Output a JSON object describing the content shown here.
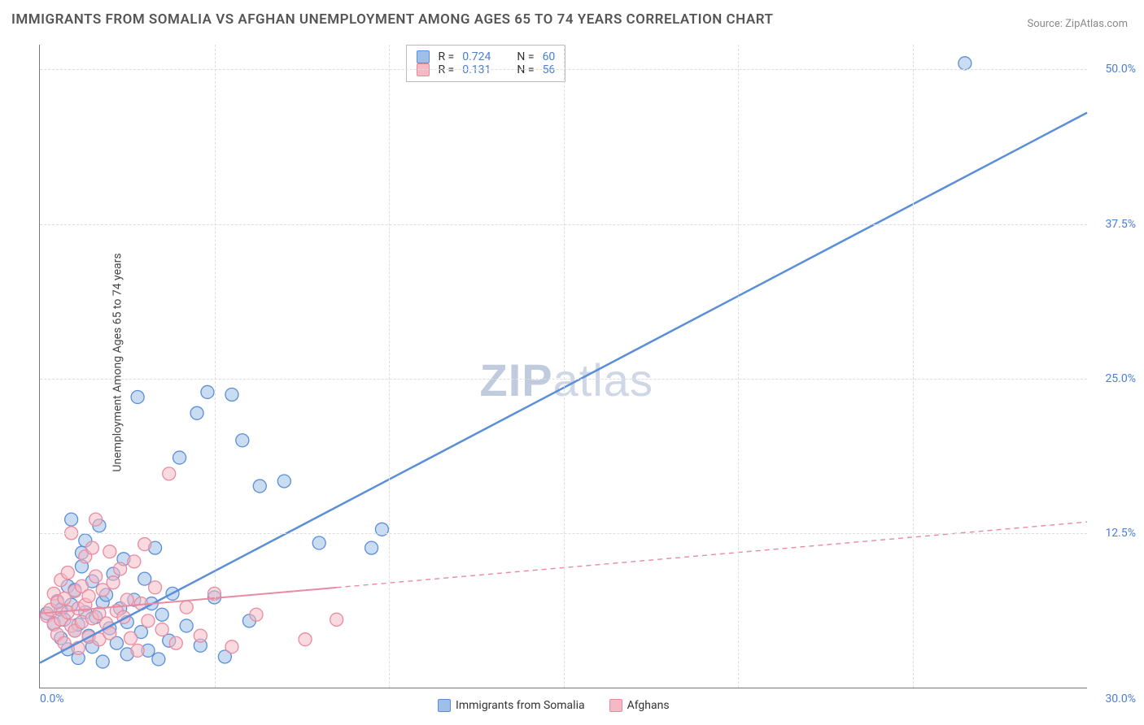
{
  "title": "IMMIGRANTS FROM SOMALIA VS AFGHAN UNEMPLOYMENT AMONG AGES 65 TO 74 YEARS CORRELATION CHART",
  "source": "Source: ZipAtlas.com",
  "ylabel": "Unemployment Among Ages 65 to 74 years",
  "watermark_a": "ZIP",
  "watermark_b": "atlas",
  "chart": {
    "type": "scatter",
    "background": "#ffffff",
    "grid_color": "#dddddd",
    "axis_color": "#777777",
    "tick_color": "#4a7fd6",
    "x_range": [
      0,
      30
    ],
    "y_range": [
      0,
      52
    ],
    "y_ticks": [
      {
        "v": 12.5,
        "l": "12.5%"
      },
      {
        "v": 25,
        "l": "25.0%"
      },
      {
        "v": 37.5,
        "l": "37.5%"
      },
      {
        "v": 50,
        "l": "50.0%"
      }
    ],
    "x_tick_labels": {
      "min": "0.0%",
      "max": "30.0%"
    },
    "x_grid": [
      5,
      10,
      15,
      20,
      25
    ],
    "marker_radius": 8,
    "marker_opacity": 0.55,
    "series": [
      {
        "name": "Immigrants from Somalia",
        "color_fill": "#9fbfe8",
        "color_stroke": "#5a8fd8",
        "r": 0.724,
        "n": 60,
        "trend": {
          "x1": 0,
          "y1": 2,
          "x2": 30,
          "y2": 46.5,
          "width": 2.5,
          "solid_until_x": 30
        },
        "points": [
          [
            0.2,
            6
          ],
          [
            0.4,
            5.2
          ],
          [
            0.5,
            7
          ],
          [
            0.6,
            4
          ],
          [
            0.6,
            6.3
          ],
          [
            0.7,
            5.5
          ],
          [
            0.8,
            8.2
          ],
          [
            0.8,
            3.1
          ],
          [
            0.9,
            13.6
          ],
          [
            0.9,
            6.7
          ],
          [
            1.0,
            4.6
          ],
          [
            1.0,
            7.9
          ],
          [
            1.1,
            5.1
          ],
          [
            1.1,
            2.4
          ],
          [
            1.2,
            9.8
          ],
          [
            1.2,
            10.9
          ],
          [
            1.3,
            11.9
          ],
          [
            1.3,
            6.1
          ],
          [
            1.4,
            4.2
          ],
          [
            1.5,
            8.6
          ],
          [
            1.5,
            3.3
          ],
          [
            1.6,
            5.7
          ],
          [
            1.7,
            13.1
          ],
          [
            1.8,
            6.9
          ],
          [
            1.8,
            2.1
          ],
          [
            1.9,
            7.5
          ],
          [
            2.0,
            4.8
          ],
          [
            2.1,
            9.2
          ],
          [
            2.2,
            3.6
          ],
          [
            2.3,
            6.4
          ],
          [
            2.4,
            10.4
          ],
          [
            2.5,
            5.3
          ],
          [
            2.5,
            2.7
          ],
          [
            2.7,
            7.1
          ],
          [
            2.8,
            23.5
          ],
          [
            2.9,
            4.5
          ],
          [
            3.0,
            8.8
          ],
          [
            3.1,
            3.0
          ],
          [
            3.2,
            6.8
          ],
          [
            3.3,
            11.3
          ],
          [
            3.4,
            2.3
          ],
          [
            3.5,
            5.9
          ],
          [
            3.7,
            3.8
          ],
          [
            3.8,
            7.6
          ],
          [
            4.0,
            18.6
          ],
          [
            4.2,
            5.0
          ],
          [
            4.5,
            22.2
          ],
          [
            4.6,
            3.4
          ],
          [
            4.8,
            23.9
          ],
          [
            5.0,
            7.3
          ],
          [
            5.3,
            2.5
          ],
          [
            5.5,
            23.7
          ],
          [
            5.8,
            20.0
          ],
          [
            6.0,
            5.4
          ],
          [
            6.3,
            16.3
          ],
          [
            7.0,
            16.7
          ],
          [
            8.0,
            11.7
          ],
          [
            9.5,
            11.3
          ],
          [
            9.8,
            12.8
          ],
          [
            26.5,
            50.5
          ]
        ]
      },
      {
        "name": "Afghans",
        "color_fill": "#f5b9c5",
        "color_stroke": "#e88ba0",
        "r": 0.131,
        "n": 56,
        "trend": {
          "x1": 0,
          "y1": 6,
          "x2": 30,
          "y2": 13.4,
          "width": 2,
          "solid_until_x": 8.5
        },
        "points": [
          [
            0.2,
            5.8
          ],
          [
            0.3,
            6.3
          ],
          [
            0.4,
            5.1
          ],
          [
            0.4,
            7.6
          ],
          [
            0.5,
            4.3
          ],
          [
            0.5,
            6.9
          ],
          [
            0.6,
            8.7
          ],
          [
            0.6,
            5.5
          ],
          [
            0.7,
            3.6
          ],
          [
            0.7,
            7.2
          ],
          [
            0.8,
            6.1
          ],
          [
            0.8,
            9.3
          ],
          [
            0.9,
            5.0
          ],
          [
            0.9,
            12.5
          ],
          [
            1.0,
            4.6
          ],
          [
            1.0,
            7.8
          ],
          [
            1.1,
            6.4
          ],
          [
            1.1,
            3.2
          ],
          [
            1.2,
            8.2
          ],
          [
            1.2,
            5.3
          ],
          [
            1.3,
            10.6
          ],
          [
            1.3,
            6.7
          ],
          [
            1.4,
            4.1
          ],
          [
            1.4,
            7.4
          ],
          [
            1.5,
            11.3
          ],
          [
            1.5,
            5.6
          ],
          [
            1.6,
            9.0
          ],
          [
            1.6,
            13.6
          ],
          [
            1.7,
            6.0
          ],
          [
            1.7,
            3.9
          ],
          [
            1.8,
            7.9
          ],
          [
            1.9,
            5.2
          ],
          [
            2.0,
            11.0
          ],
          [
            2.0,
            4.4
          ],
          [
            2.1,
            8.5
          ],
          [
            2.2,
            6.2
          ],
          [
            2.3,
            9.6
          ],
          [
            2.4,
            5.7
          ],
          [
            2.5,
            7.1
          ],
          [
            2.6,
            4.0
          ],
          [
            2.7,
            10.2
          ],
          [
            2.8,
            3.0
          ],
          [
            2.9,
            6.8
          ],
          [
            3.0,
            11.6
          ],
          [
            3.1,
            5.4
          ],
          [
            3.3,
            8.1
          ],
          [
            3.5,
            4.7
          ],
          [
            3.7,
            17.3
          ],
          [
            3.9,
            3.6
          ],
          [
            4.2,
            6.5
          ],
          [
            4.6,
            4.2
          ],
          [
            5.0,
            7.6
          ],
          [
            5.5,
            3.3
          ],
          [
            6.2,
            5.9
          ],
          [
            7.6,
            3.9
          ],
          [
            8.5,
            5.5
          ]
        ]
      }
    ],
    "legend_bottom": {
      "series1": "Immigrants from Somalia",
      "series2": "Afghans"
    },
    "stats_box": {
      "r_label": "R =",
      "n_label": "N ="
    }
  }
}
